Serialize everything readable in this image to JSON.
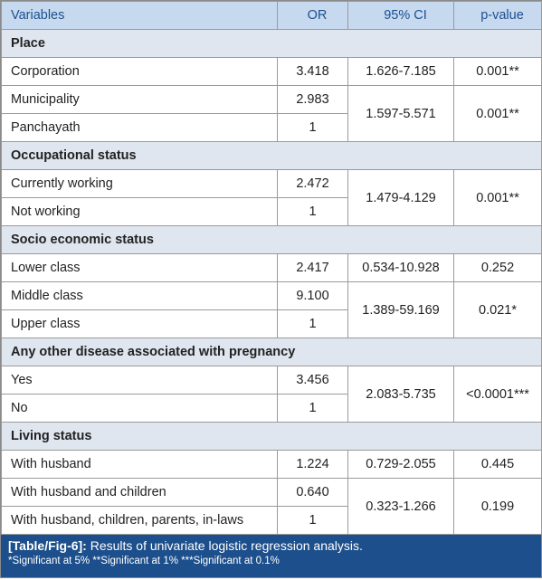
{
  "table": {
    "header": [
      "Variables",
      "OR",
      "95% CI",
      "p-value"
    ],
    "sections": [
      {
        "title": "Place",
        "groups": [
          {
            "rows": [
              {
                "variable": "Corporation",
                "or": "3.418"
              }
            ],
            "ci": "1.626-7.185",
            "p": "0.001**"
          },
          {
            "rows": [
              {
                "variable": "Municipality",
                "or": "2.983"
              },
              {
                "variable": "Panchayath",
                "or": "1"
              }
            ],
            "ci": "1.597-5.571",
            "p": "0.001**"
          }
        ]
      },
      {
        "title": "Occupational status",
        "groups": [
          {
            "rows": [
              {
                "variable": "Currently working",
                "or": "2.472"
              },
              {
                "variable": "Not working",
                "or": "1"
              }
            ],
            "ci": "1.479-4.129",
            "p": "0.001**"
          }
        ]
      },
      {
        "title": "Socio economic status",
        "groups": [
          {
            "rows": [
              {
                "variable": "Lower class",
                "or": "2.417"
              }
            ],
            "ci": "0.534-10.928",
            "p": "0.252"
          },
          {
            "rows": [
              {
                "variable": "Middle class",
                "or": "9.100"
              },
              {
                "variable": "Upper class",
                "or": "1"
              }
            ],
            "ci": "1.389-59.169",
            "p": "0.021*"
          }
        ]
      },
      {
        "title": "Any other disease associated with pregnancy",
        "groups": [
          {
            "rows": [
              {
                "variable": "Yes",
                "or": "3.456"
              },
              {
                "variable": "No",
                "or": "1"
              }
            ],
            "ci": "2.083-5.735",
            "p": "<0.0001***"
          }
        ]
      },
      {
        "title": "Living status",
        "groups": [
          {
            "rows": [
              {
                "variable": "With husband",
                "or": "1.224"
              }
            ],
            "ci": "0.729-2.055",
            "p": "0.445"
          },
          {
            "rows": [
              {
                "variable": "With husband and children",
                "or": "0.640"
              },
              {
                "variable": "With husband, children, parents, in-laws",
                "or": "1"
              }
            ],
            "ci": "0.323-1.266",
            "p": "0.199"
          }
        ]
      }
    ]
  },
  "caption": {
    "label": "[Table/Fig-6]:",
    "text": "Results of univariate logistic regression analysis.",
    "note": "*Significant at 5% **Significant at 1% ***Significant at 0.1%"
  }
}
